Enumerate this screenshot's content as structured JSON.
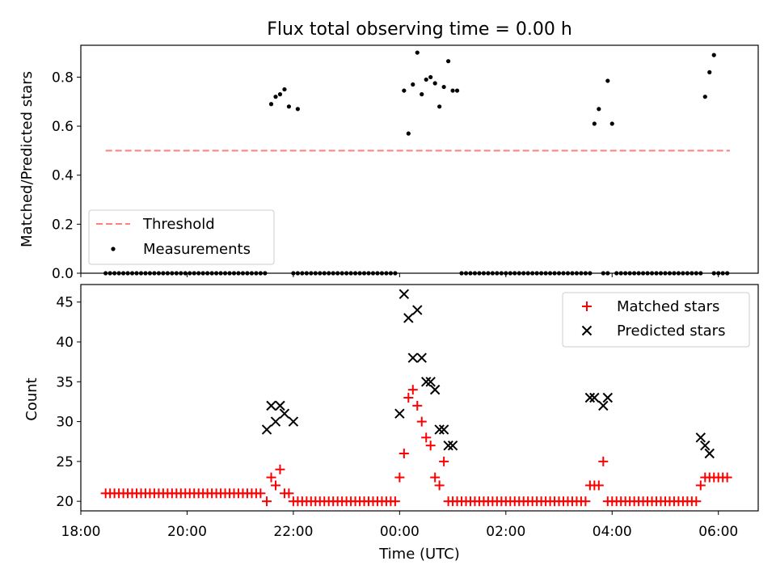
{
  "chart_data": [
    {
      "type": "scatter",
      "title": "Flux total observing time = 0.00 h",
      "ylabel": "Matched/Predicted stars",
      "xlabel": "",
      "xlim": [
        "2022-01-01T18:00",
        "2022-01-02T06:45"
      ],
      "ylim": [
        0,
        0.93
      ],
      "yticks": [
        0.0,
        0.2,
        0.4,
        0.6,
        0.8
      ],
      "ytick_labels": [
        "0.0",
        "0.2",
        "0.4",
        "0.6",
        "0.8"
      ],
      "grid": false,
      "legend_position": "lower-left",
      "threshold": {
        "name": "Threshold",
        "value": 0.5,
        "x_start": "18:28",
        "x_end": "06:13",
        "color": "#ff7f7f",
        "style": "dashed"
      },
      "series": [
        {
          "name": "Measurements",
          "color": "#000000",
          "marker": "dot",
          "points": [
            {
              "x": "21:35",
              "y": 0.69
            },
            {
              "x": "21:40",
              "y": 0.72
            },
            {
              "x": "21:45",
              "y": 0.73
            },
            {
              "x": "21:50",
              "y": 0.75
            },
            {
              "x": "21:55",
              "y": 0.68
            },
            {
              "x": "22:05",
              "y": 0.67
            },
            {
              "x": "00:05",
              "y": 0.745
            },
            {
              "x": "00:10",
              "y": 0.57
            },
            {
              "x": "00:15",
              "y": 0.77
            },
            {
              "x": "00:20",
              "y": 0.9
            },
            {
              "x": "00:25",
              "y": 0.73
            },
            {
              "x": "00:30",
              "y": 0.79
            },
            {
              "x": "00:35",
              "y": 0.8
            },
            {
              "x": "00:40",
              "y": 0.775
            },
            {
              "x": "00:45",
              "y": 0.68
            },
            {
              "x": "00:50",
              "y": 0.76
            },
            {
              "x": "00:55",
              "y": 0.865
            },
            {
              "x": "01:00",
              "y": 0.745
            },
            {
              "x": "01:05",
              "y": 0.745
            },
            {
              "x": "03:40",
              "y": 0.61
            },
            {
              "x": "03:45",
              "y": 0.67
            },
            {
              "x": "03:55",
              "y": 0.785
            },
            {
              "x": "04:00",
              "y": 0.61
            },
            {
              "x": "05:45",
              "y": 0.72
            },
            {
              "x": "05:50",
              "y": 0.82
            },
            {
              "x": "05:55",
              "y": 0.89
            }
          ],
          "zero_runs": [
            {
              "start": "18:28",
              "end": "21:30"
            },
            {
              "start": "22:00",
              "end": "23:55"
            },
            {
              "start": "01:10",
              "end": "03:35"
            },
            {
              "start": "03:50",
              "end": "03:55"
            },
            {
              "start": "04:05",
              "end": "05:40"
            },
            {
              "start": "05:55",
              "end": "06:13"
            }
          ],
          "run_step_minutes": 5
        }
      ]
    },
    {
      "type": "scatter",
      "title": "",
      "ylabel": "Count",
      "xlabel": "Time (UTC)",
      "xlim": [
        "2022-01-01T18:00",
        "2022-01-02T06:45"
      ],
      "ylim": [
        18.8,
        47.2
      ],
      "yticks": [
        20,
        25,
        30,
        35,
        40,
        45
      ],
      "ytick_labels": [
        "20",
        "25",
        "30",
        "35",
        "40",
        "45"
      ],
      "xticks": [
        "18:00",
        "20:00",
        "22:00",
        "00:00",
        "02:00",
        "04:00",
        "06:00"
      ],
      "grid": false,
      "legend_position": "upper-right",
      "series": [
        {
          "name": "Matched stars",
          "color": "#ff0000",
          "marker": "plus",
          "points": [
            {
              "x": "21:30",
              "y": 20
            },
            {
              "x": "21:35",
              "y": 23
            },
            {
              "x": "21:40",
              "y": 22
            },
            {
              "x": "21:45",
              "y": 24
            },
            {
              "x": "21:50",
              "y": 21
            },
            {
              "x": "21:55",
              "y": 21
            },
            {
              "x": "00:00",
              "y": 23
            },
            {
              "x": "00:05",
              "y": 26
            },
            {
              "x": "00:10",
              "y": 33
            },
            {
              "x": "00:15",
              "y": 34
            },
            {
              "x": "00:20",
              "y": 32
            },
            {
              "x": "00:25",
              "y": 30
            },
            {
              "x": "00:30",
              "y": 28
            },
            {
              "x": "00:35",
              "y": 27
            },
            {
              "x": "00:40",
              "y": 23
            },
            {
              "x": "00:45",
              "y": 22
            },
            {
              "x": "00:50",
              "y": 25
            },
            {
              "x": "03:35",
              "y": 22
            },
            {
              "x": "03:40",
              "y": 22
            },
            {
              "x": "03:45",
              "y": 22
            },
            {
              "x": "03:50",
              "y": 25
            },
            {
              "x": "05:40",
              "y": 22
            },
            {
              "x": "05:45",
              "y": 23
            }
          ],
          "runs": [
            {
              "start": "18:28",
              "end": "21:25",
              "y": 21
            },
            {
              "start": "22:00",
              "end": "23:55",
              "y": 20
            },
            {
              "start": "00:55",
              "end": "03:30",
              "y": 20
            },
            {
              "start": "03:55",
              "end": "05:35",
              "y": 20
            },
            {
              "start": "05:50",
              "end": "06:13",
              "y": 23
            }
          ],
          "run_step_minutes": 5
        },
        {
          "name": "Predicted stars",
          "color": "#000000",
          "marker": "x",
          "points": [
            {
              "x": "21:30",
              "y": 29
            },
            {
              "x": "21:35",
              "y": 32
            },
            {
              "x": "21:40",
              "y": 30
            },
            {
              "x": "21:45",
              "y": 32
            },
            {
              "x": "21:50",
              "y": 31
            },
            {
              "x": "22:00",
              "y": 30
            },
            {
              "x": "00:00",
              "y": 31
            },
            {
              "x": "00:05",
              "y": 46
            },
            {
              "x": "00:10",
              "y": 43
            },
            {
              "x": "00:15",
              "y": 38
            },
            {
              "x": "00:20",
              "y": 44
            },
            {
              "x": "00:25",
              "y": 38
            },
            {
              "x": "00:30",
              "y": 35
            },
            {
              "x": "00:35",
              "y": 35
            },
            {
              "x": "00:40",
              "y": 34
            },
            {
              "x": "00:45",
              "y": 29
            },
            {
              "x": "00:50",
              "y": 29
            },
            {
              "x": "00:55",
              "y": 27
            },
            {
              "x": "01:00",
              "y": 27
            },
            {
              "x": "03:35",
              "y": 33
            },
            {
              "x": "03:40",
              "y": 33
            },
            {
              "x": "03:50",
              "y": 32
            },
            {
              "x": "03:55",
              "y": 33
            },
            {
              "x": "05:40",
              "y": 28
            },
            {
              "x": "05:45",
              "y": 27
            },
            {
              "x": "05:50",
              "y": 26
            }
          ]
        }
      ]
    }
  ]
}
